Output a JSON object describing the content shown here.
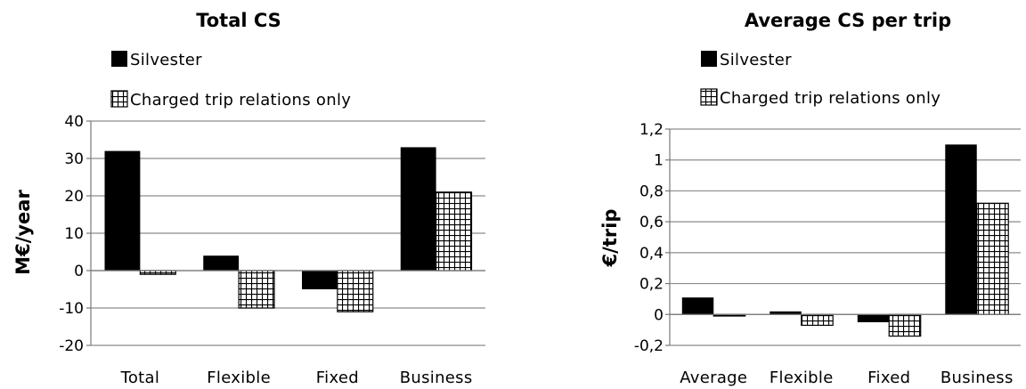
{
  "colors": {
    "series1": "#000000",
    "series2_pattern": "crosshatch",
    "grid": "#8c8c8c"
  },
  "chart_data": [
    {
      "type": "bar",
      "title": "Total CS",
      "ylabel": "M€/year",
      "xlabel": "",
      "categories": [
        "Total",
        "Flexible",
        "Fixed",
        "Business"
      ],
      "ylim": [
        -20,
        40
      ],
      "yticks": [
        -20,
        -10,
        0,
        10,
        20,
        30,
        40
      ],
      "ytick_labels": [
        "-20",
        "-10",
        "0",
        "10",
        "20",
        "30",
        "40"
      ],
      "grid": true,
      "legend_position": "top-left",
      "series": [
        {
          "name": "Silvester",
          "values": [
            32,
            4,
            -5,
            33
          ]
        },
        {
          "name": "Charged trip relations only",
          "values": [
            -1,
            -10,
            -11,
            21
          ]
        }
      ]
    },
    {
      "type": "bar",
      "title": "Average CS per trip",
      "ylabel": "€/trip",
      "xlabel": "",
      "categories": [
        "Average",
        "Flexible",
        "Fixed",
        "Business"
      ],
      "ylim": [
        -0.2,
        1.2
      ],
      "yticks": [
        -0.2,
        0,
        0.2,
        0.4,
        0.6,
        0.8,
        1,
        1.2
      ],
      "ytick_labels": [
        "-0,2",
        "0",
        "0,2",
        "0,4",
        "0,6",
        "0,8",
        "1",
        "1,2"
      ],
      "grid": true,
      "legend_position": "top-left",
      "series": [
        {
          "name": "Silvester",
          "values": [
            0.11,
            0.02,
            -0.05,
            1.1
          ]
        },
        {
          "name": "Charged trip relations only",
          "values": [
            -0.01,
            -0.07,
            -0.14,
            0.72
          ]
        }
      ]
    }
  ]
}
